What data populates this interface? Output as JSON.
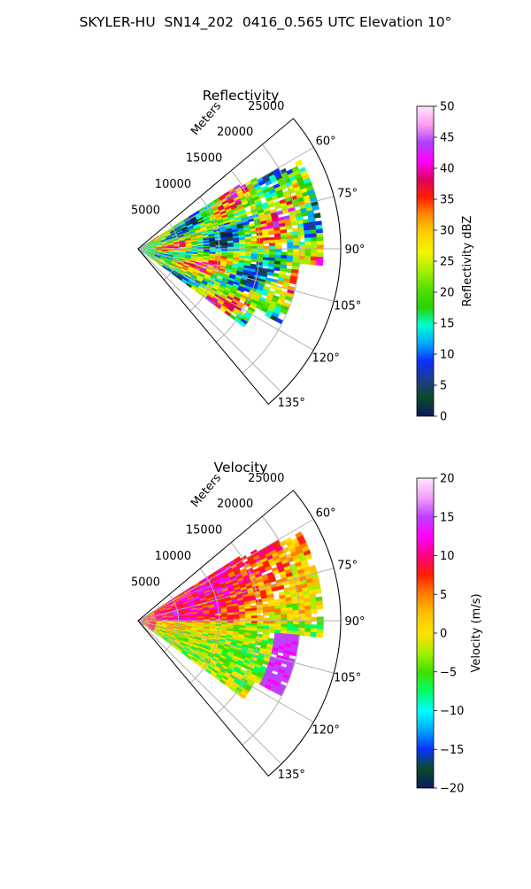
{
  "figure": {
    "suptitle": "SKYLER-HU  SN14_202  0416_0.565 UTC Elevation 10°"
  },
  "chart_data": [
    {
      "type": "heatmap",
      "projection": "polar-sector",
      "title": "Reflectivity",
      "range_label": "Meters",
      "range_ticks": [
        5000,
        10000,
        15000,
        20000,
        25000
      ],
      "range_tick_labels": [
        "5000",
        "10000",
        "15000",
        "20000",
        "25000"
      ],
      "r_max": 25000,
      "azimuth_range_deg": [
        50,
        140
      ],
      "azimuth_ticks": [
        60,
        75,
        90,
        105,
        120,
        135
      ],
      "azimuth_tick_labels": [
        "60°",
        "75°",
        "90°",
        "105°",
        "120°",
        "135°"
      ],
      "grid": true,
      "colorbar": {
        "label": "Reflectivity dBZ",
        "vmin": 0,
        "vmax": 50,
        "ticks": [
          0,
          5,
          10,
          15,
          20,
          25,
          30,
          35,
          40,
          45,
          50
        ],
        "tick_labels": [
          "0",
          "5",
          "10",
          "15",
          "20",
          "25",
          "30",
          "35",
          "40",
          "45",
          "50"
        ],
        "stops": [
          "#0b1a5e",
          "#0a4a2a",
          "#1e3c8c",
          "#0a30ff",
          "#00a8ff",
          "#00ffd0",
          "#2ad100",
          "#55e000",
          "#a8f000",
          "#f4f400",
          "#ffd000",
          "#ff9000",
          "#ff2000",
          "#e00060",
          "#ff00ff",
          "#b040ff",
          "#ff9df0",
          "#ffe6ff"
        ]
      }
    },
    {
      "type": "heatmap",
      "projection": "polar-sector",
      "title": "Velocity",
      "range_label": "Meters",
      "range_ticks": [
        5000,
        10000,
        15000,
        20000,
        25000
      ],
      "range_tick_labels": [
        "5000",
        "10000",
        "15000",
        "20000",
        "25000"
      ],
      "r_max": 25000,
      "azimuth_range_deg": [
        50,
        140
      ],
      "azimuth_ticks": [
        60,
        75,
        90,
        105,
        120,
        135
      ],
      "azimuth_tick_labels": [
        "60°",
        "75°",
        "90°",
        "105°",
        "120°",
        "135°"
      ],
      "grid": true,
      "colorbar": {
        "label": "Velocity (m/s)",
        "vmin": -20,
        "vmax": 20,
        "ticks": [
          -20,
          -15,
          -10,
          -5,
          0,
          5,
          10,
          15,
          20
        ],
        "tick_labels": [
          "−20",
          "−15",
          "−10",
          "−5",
          "0",
          "5",
          "10",
          "15",
          "20"
        ],
        "stops": [
          "#0b1a5e",
          "#0a4a2a",
          "#0a30ff",
          "#00a8ff",
          "#00ffff",
          "#00ff60",
          "#40e000",
          "#a8f000",
          "#ffe000",
          "#ffc000",
          "#ff8000",
          "#ff2000",
          "#ff0080",
          "#ff00ff",
          "#c040ff",
          "#f0a0ff",
          "#ffe6ff"
        ]
      }
    }
  ]
}
